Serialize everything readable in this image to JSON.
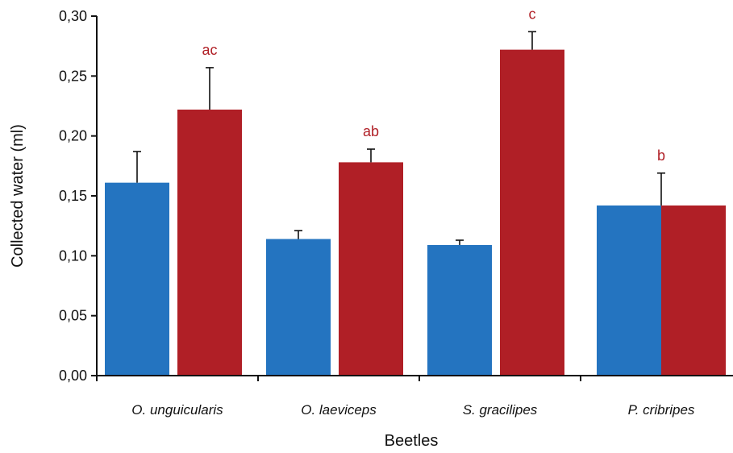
{
  "colors": {
    "series_a": "#2474c0",
    "series_b": "#b01f26",
    "annotation": "#b01f26",
    "axis": "#111111"
  },
  "chart_data": {
    "type": "bar",
    "xlabel": "Beetles",
    "ylabel": "Collected water (ml)",
    "ylim": [
      0,
      0.3
    ],
    "yticks": [
      "0,00",
      "0,05",
      "0,10",
      "0,15",
      "0,20",
      "0,25",
      "0,30"
    ],
    "categories": [
      "O. unguicularis",
      "O. laeviceps",
      "S. gracilipes",
      "P. cribripes"
    ],
    "grid": false,
    "legend": "none",
    "series": [
      {
        "values": [
          0.161,
          0.114,
          0.109,
          0.142
        ],
        "errors": [
          0.026,
          0.007,
          0.004,
          0.027
        ]
      },
      {
        "values": [
          0.222,
          0.178,
          0.272,
          0.142
        ],
        "errors": [
          0.035,
          0.011,
          0.015,
          0.027
        ]
      }
    ],
    "annotations": [
      "ac",
      "ab",
      "c",
      "b"
    ]
  }
}
